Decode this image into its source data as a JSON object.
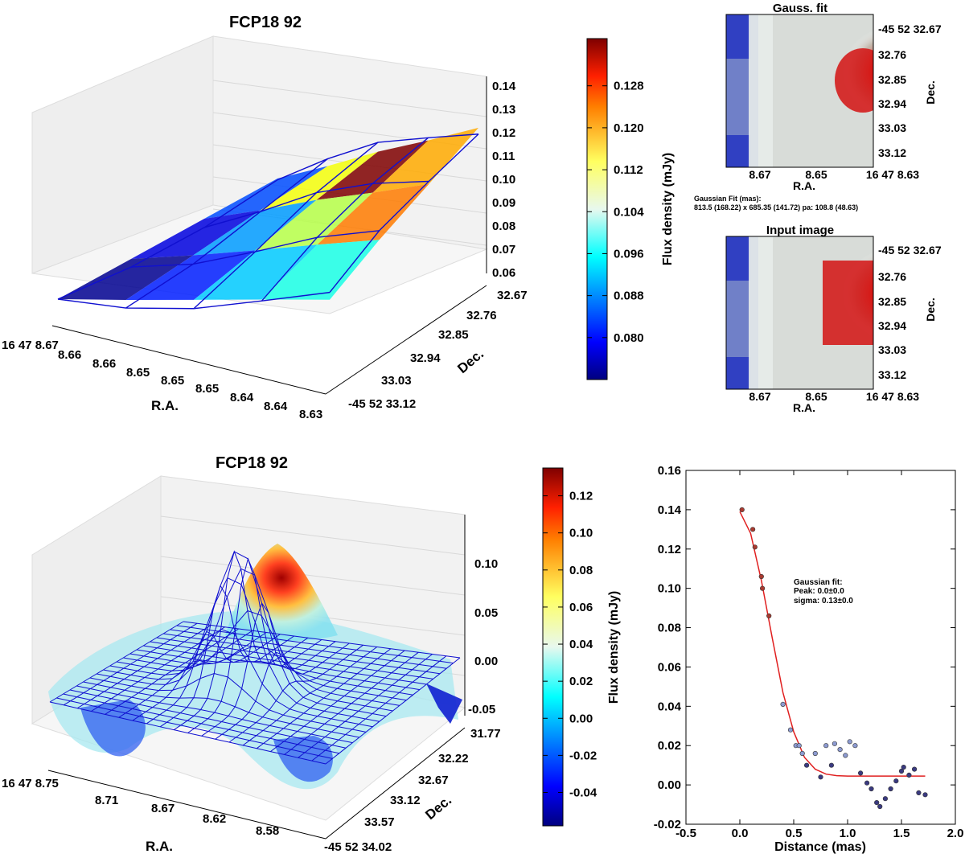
{
  "colors": {
    "jet": [
      "#00007f",
      "#0000ff",
      "#007fff",
      "#00ffff",
      "#7fff7f",
      "#ffff00",
      "#ff7f00",
      "#ff0000",
      "#7f0000"
    ],
    "wire": "#1010d0",
    "fit_line": "#e02020"
  },
  "chart_data": [
    {
      "type": "surface3d",
      "title": "FCP18 92",
      "xlabel": "R.A.",
      "ylabel": "Dec.",
      "x_ticks": [
        "16 47 8.67",
        "8.66",
        "8.66",
        "8.65",
        "8.65",
        "8.65",
        "8.64",
        "8.64",
        "8.63"
      ],
      "y_ticks": [
        "32.67",
        "32.76",
        "32.85",
        "32.94",
        "33.03",
        "-45 52 33.12"
      ],
      "z_ticks": [
        "0.14",
        "0.13",
        "0.12",
        "0.11",
        "0.10",
        "0.09",
        "0.08",
        "0.07",
        "0.06"
      ],
      "zlim": [
        0.06,
        0.14
      ],
      "surface_cells": [
        {
          "value": 0.073
        },
        {
          "value": 0.082
        },
        {
          "value": 0.093
        },
        {
          "value": 0.098
        },
        {
          "value": 0.078
        },
        {
          "value": 0.09
        },
        {
          "value": 0.108
        },
        {
          "value": 0.121
        },
        {
          "value": 0.085
        },
        {
          "value": 0.112
        },
        {
          "value": 0.137
        },
        {
          "value": 0.118
        }
      ],
      "colorbar": {
        "label": "Flux density (mJy)",
        "range": [
          0.072,
          0.137
        ],
        "ticks": [
          "0.128",
          "0.120",
          "0.112",
          "0.104",
          "0.096",
          "0.088",
          "0.080"
        ],
        "tick_values": [
          0.128,
          0.12,
          0.112,
          0.104,
          0.096,
          0.088,
          0.08
        ]
      }
    },
    {
      "type": "heatmap",
      "title": "Gauss. fit",
      "xlabel": "R.A.",
      "ylabel": "Dec.",
      "x_ticks": [
        "8.67",
        "8.65",
        "16 47 8.63"
      ],
      "y_ticks": [
        "-45 52 32.67",
        "32.76",
        "32.85",
        "32.94",
        "33.03",
        "33.12"
      ],
      "annotation_title": "Gaussian Fit (mas):",
      "annotation_text": "813.5 (168.22) x 685.35 (141.72) pa: 108.8 (48.63)"
    },
    {
      "type": "heatmap",
      "title": "Input image",
      "xlabel": "R.A.",
      "ylabel": "Dec.",
      "x_ticks": [
        "8.67",
        "8.65",
        "16 47 8.63"
      ],
      "y_ticks": [
        "-45 52 32.67",
        "32.76",
        "32.85",
        "32.94",
        "33.03",
        "33.12"
      ]
    },
    {
      "type": "surface3d",
      "title": "FCP18 92",
      "xlabel": "R.A.",
      "ylabel": "Dec.",
      "x_ticks": [
        "16 47 8.75",
        "8.71",
        "8.67",
        "8.62",
        "8.58"
      ],
      "y_ticks": [
        "31.77",
        "32.22",
        "32.67",
        "33.12",
        "33.57",
        "-45 52 34.02"
      ],
      "z_ticks": [
        "0.10",
        "0.05",
        "0.00",
        "-0.05"
      ],
      "zlim": [
        -0.06,
        0.14
      ],
      "colorbar": {
        "label": "Flux density (mJy)",
        "range": [
          -0.058,
          0.135
        ],
        "ticks": [
          "0.12",
          "0.10",
          "0.08",
          "0.06",
          "0.04",
          "0.02",
          "0.00",
          "-0.02",
          "-0.04"
        ],
        "tick_values": [
          0.12,
          0.1,
          0.08,
          0.06,
          0.04,
          0.02,
          0.0,
          -0.02,
          -0.04
        ]
      }
    },
    {
      "type": "scatter",
      "xlabel": "Distance (mas)",
      "ylabel": "",
      "xlim": [
        -0.5,
        2.0
      ],
      "ylim": [
        -0.02,
        0.16
      ],
      "x_ticks": [
        "-0.5",
        "0.0",
        "0.5",
        "1.0",
        "1.5",
        "2.0"
      ],
      "y_ticks": [
        "0.16",
        "0.14",
        "0.12",
        "0.10",
        "0.08",
        "0.06",
        "0.04",
        "0.02",
        "0.00",
        "-0.02"
      ],
      "x_tick_values": [
        -0.5,
        0.0,
        0.5,
        1.0,
        1.5,
        2.0
      ],
      "y_tick_values": [
        0.16,
        0.14,
        0.12,
        0.1,
        0.08,
        0.06,
        0.04,
        0.02,
        0.0,
        -0.02
      ],
      "annotation_title": "Gaussian fit:",
      "annotation_peak": "Peak: 0.0±0.0",
      "annotation_sigma": "sigma: 0.13±0.0",
      "points": {
        "x": [
          0.02,
          0.12,
          0.14,
          0.2,
          0.21,
          0.27,
          0.4,
          0.47,
          0.52,
          0.55,
          0.58,
          0.62,
          0.7,
          0.75,
          0.8,
          0.85,
          0.88,
          0.93,
          0.98,
          1.02,
          1.07,
          1.12,
          1.18,
          1.22,
          1.27,
          1.3,
          1.35,
          1.4,
          1.45,
          1.5,
          1.52,
          1.57,
          1.62,
          1.66,
          1.72
        ],
        "y": [
          0.14,
          0.13,
          0.121,
          0.106,
          0.1,
          0.086,
          0.041,
          0.028,
          0.02,
          0.02,
          0.016,
          0.01,
          0.016,
          0.004,
          0.02,
          0.01,
          0.021,
          0.018,
          0.015,
          0.022,
          0.02,
          0.006,
          0.001,
          -0.002,
          -0.009,
          -0.011,
          -0.007,
          -0.002,
          0.002,
          0.007,
          0.009,
          0.005,
          0.008,
          -0.004,
          -0.005
        ]
      },
      "fit_curve": {
        "x": [
          0.0,
          0.1,
          0.2,
          0.3,
          0.4,
          0.5,
          0.6,
          0.7,
          0.8,
          0.9,
          1.0,
          1.2,
          1.5,
          1.72
        ],
        "y": [
          0.139,
          0.128,
          0.104,
          0.075,
          0.047,
          0.027,
          0.014,
          0.008,
          0.0055,
          0.0047,
          0.0045,
          0.0045,
          0.0045,
          0.0045
        ]
      }
    }
  ]
}
